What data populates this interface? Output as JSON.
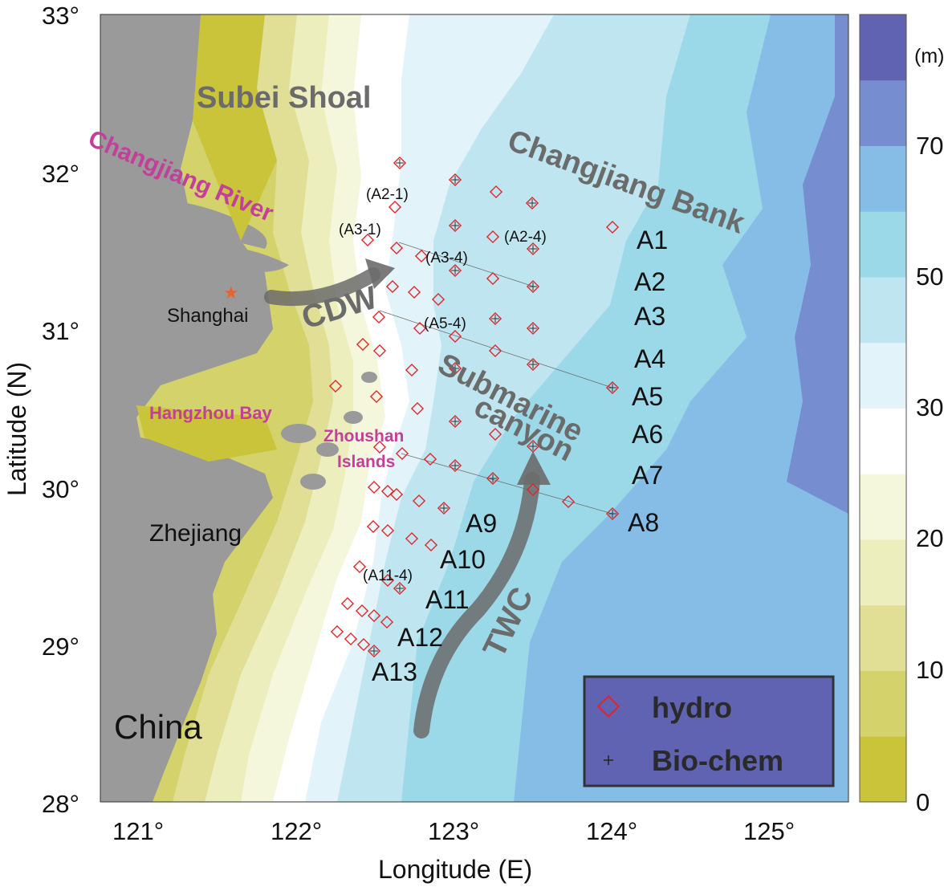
{
  "axes": {
    "xlabel": "Longitude (E)",
    "ylabel": "Latitude (N)",
    "xticks": [
      "121°",
      "122°",
      "123°",
      "124°",
      "125°"
    ],
    "yticks": [
      "33°",
      "32°",
      "31°",
      "30°",
      "29°",
      "28°"
    ],
    "xlim": [
      120.75,
      125.5
    ],
    "ylim": [
      28,
      33
    ]
  },
  "colorbar": {
    "unit": "(m)",
    "ticks": [
      "70",
      "50",
      "30",
      "20",
      "10",
      "0"
    ],
    "colors": [
      "#c9c43a",
      "#d4d26a",
      "#e0df95",
      "#eceebd",
      "#f5f7dc",
      "#ffffff",
      "#e2f3fa",
      "#bfe6f0",
      "#9bd8e8",
      "#85bde6",
      "#768ecf",
      "#5f63b2"
    ]
  },
  "regions": {
    "subei_shoal": "Subei Shoal",
    "changjiang_river": "Changjiang River",
    "changjiang_bank": "Changjiang Bank",
    "shanghai": "Shanghai",
    "cdw": "CDW",
    "submarine": "Submarine",
    "canyon": "canyon",
    "hangzhou_bay": "Hangzhou Bay",
    "zhoushan": "Zhoushan",
    "islands": "Islands",
    "zhejiang": "Zhejiang",
    "china": "China",
    "twc": "TWC"
  },
  "stations": {
    "sections_east": [
      "A1",
      "A2",
      "A3",
      "A4",
      "A5",
      "A6",
      "A7",
      "A8"
    ],
    "sections_south": [
      "A9",
      "A10",
      "A11",
      "A12",
      "A13"
    ],
    "sublabels": [
      "(A2-1)",
      "(A3-1)",
      "(A3-4)",
      "(A2-4)",
      "(A5-4)",
      "(A11-4)"
    ]
  },
  "legend": {
    "items": [
      {
        "label": "hydro",
        "icon": "red-diamond-icon"
      },
      {
        "label": "Bio-chem",
        "icon": "plus-icon"
      }
    ]
  }
}
